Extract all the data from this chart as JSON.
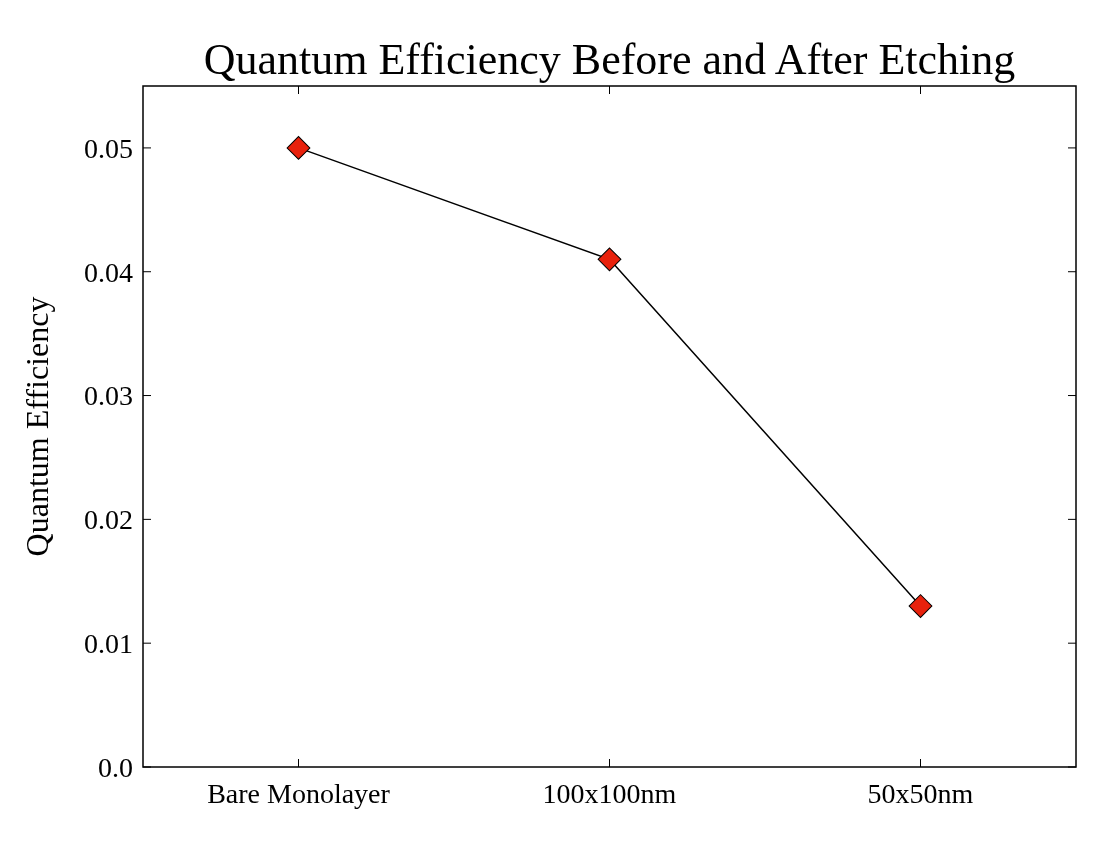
{
  "chart_data": {
    "type": "line",
    "title": "Quantum Efficiency Before and After Etching",
    "ylabel": "Quantum Efficiency",
    "categories": [
      "Bare Monolayer",
      "100x100nm",
      "50x50nm"
    ],
    "series": [
      {
        "color": "#e8210c",
        "values": [
          0.05,
          0.041,
          0.013
        ]
      }
    ],
    "ylim": [
      0,
      0.055
    ],
    "yticks": [
      {
        "value": 0,
        "label": "0.0"
      },
      0.01,
      0.02,
      0.03,
      0.04,
      0.05
    ],
    "marker": "diamond",
    "line_style": "solid",
    "grid": false
  }
}
